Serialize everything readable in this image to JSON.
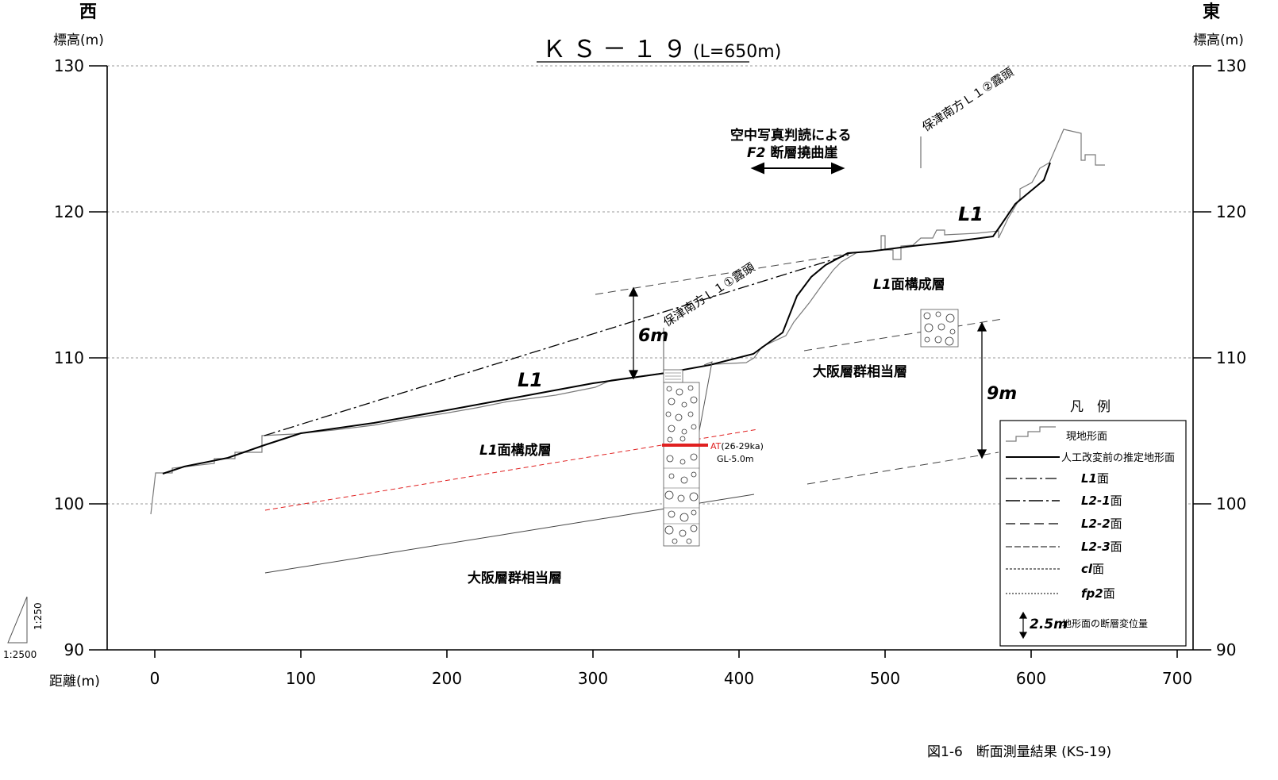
{
  "header": {
    "west": "西",
    "east": "東",
    "elev_label": "標高(m)",
    "dist_label": "距離(m)",
    "title": "ＫＳ－１９",
    "title_length": "(L=650m)"
  },
  "axes": {
    "y_ticks": [
      "130",
      "120",
      "110",
      "100",
      "90"
    ],
    "x_ticks": [
      "0",
      "100",
      "200",
      "300",
      "400",
      "500",
      "600",
      "700"
    ]
  },
  "annotations": {
    "photo_line1": "空中写真判読による",
    "photo_line2_a": "F2",
    "photo_line2_b": " 断層撓曲崖",
    "outcrop1": "保津南方Ｌ１①露頭",
    "outcrop2": "保津南方Ｌ１②露頭",
    "l1_left": "L1",
    "l1_right": "L1",
    "six_m": "6m",
    "nine_m": "9m",
    "l1_layer_right_a": "L1",
    "l1_layer_right_b": "面構成層",
    "l1_layer_left_a": "L1",
    "l1_layer_left_b": "面構成層",
    "osaka_right": "大阪層群相当層",
    "osaka_bottom": "大阪層群相当層",
    "at_label": "AT",
    "at_age": "(26-29ka)",
    "gl_label": "GL-5.0m"
  },
  "legend": {
    "title": "凡　例",
    "items": [
      {
        "label": "現地形面"
      },
      {
        "label": "人工改変前の推定地形面"
      },
      {
        "label_a": "L1",
        "label_b": "面"
      },
      {
        "label_a": "L2-1",
        "label_b": "面"
      },
      {
        "label_a": "L2-2",
        "label_b": "面"
      },
      {
        "label_a": "L2-3",
        "label_b": "面"
      },
      {
        "label_a": "cl",
        "label_b": "面"
      },
      {
        "label_a": "fp2",
        "label_b": "面"
      }
    ],
    "offset_value": "2.5m",
    "offset_label": "地形面の断層変位量"
  },
  "scale": {
    "vertical": "1:250",
    "horizontal": "1:2500"
  },
  "caption": "図1-6　断面測量結果 (KS-19)",
  "colors": {
    "at_marker": "#e02020",
    "grid": "#9a9a9a",
    "terrain": "#7a7a7a"
  },
  "chart_data": {
    "type": "line",
    "x_unit": "m",
    "y_unit": "m",
    "xlim": [
      0,
      700
    ],
    "ylim": [
      90,
      130
    ],
    "series": [
      {
        "name": "人工改変前の推定地形面",
        "x": [
          5,
          20,
          50,
          75,
          100,
          150,
          200,
          250,
          300,
          350,
          380,
          410,
          430,
          440,
          450,
          460,
          475,
          490,
          520,
          550,
          575,
          580,
          590,
          600,
          612
        ],
        "y": [
          102.1,
          102.6,
          103.4,
          104.3,
          104.9,
          105.6,
          106.5,
          107.4,
          108.3,
          109.0,
          109.5,
          110.2,
          111.7,
          114.2,
          115.9,
          117.0,
          117.8,
          117.9,
          118.3,
          118.6,
          118.9,
          119.6,
          121.1,
          121.9,
          123.3
        ]
      },
      {
        "name": "L1面",
        "x": [
          75,
          475
        ],
        "y": [
          104.6,
          117.7
        ]
      }
    ],
    "grid": true
  }
}
